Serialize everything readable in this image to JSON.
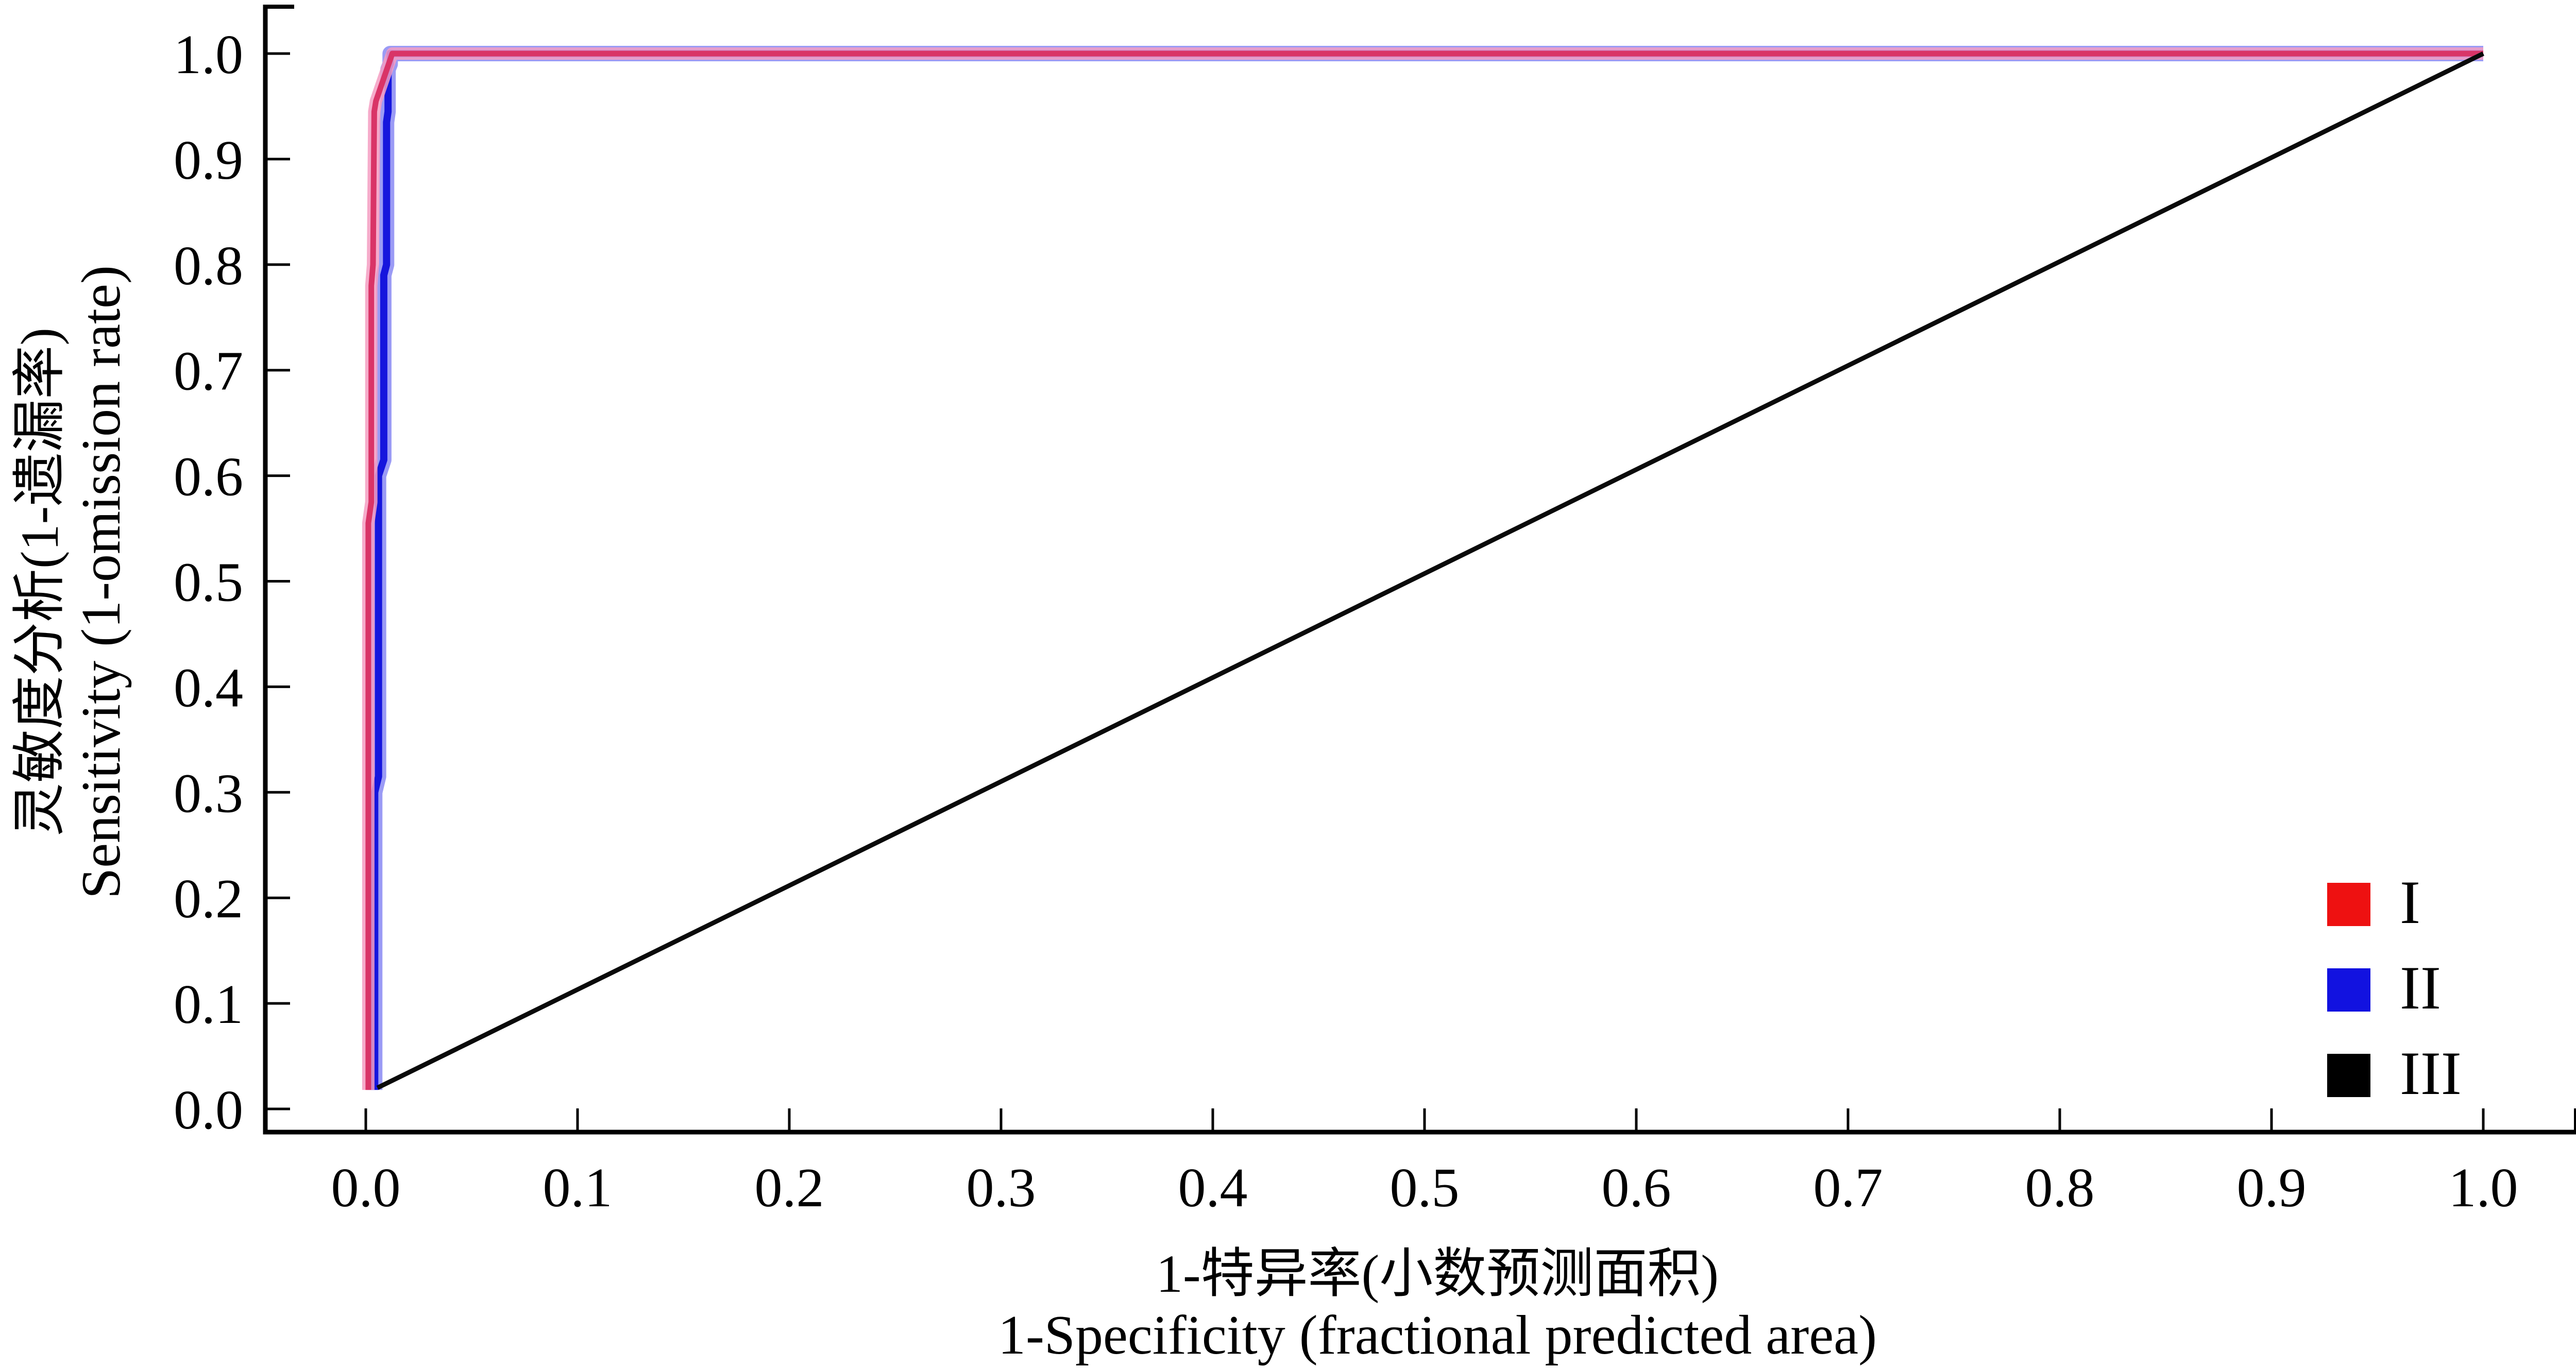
{
  "figure": {
    "background": "#ffffff",
    "x_axis": {
      "title_zh": "1-特异率(小数预测面积)",
      "title_en": "1-Specificity (fractional predicted area)"
    },
    "y_axis": {
      "title_zh": "灵敏度分析(1-遗漏率)",
      "title_en": "Sensitivity (1-omission rate)"
    }
  },
  "chart_data": {
    "type": "line",
    "title": "",
    "xlabel": "1-特异率(小数预测面积)",
    "xlabel_en": "1-Specificity (fractional predicted area)",
    "ylabel": "灵敏度分析(1-遗漏率)",
    "ylabel_en": "Sensitivity (1-omission rate)",
    "xlim": [
      0,
      1
    ],
    "ylim": [
      0,
      1
    ],
    "grid": false,
    "axis_color": "#000000",
    "xticks": [
      0,
      0.1,
      0.2,
      0.3,
      0.4,
      0.5,
      0.6,
      0.7,
      0.8,
      0.9,
      1.0
    ],
    "xtick_labels": [
      "0.0",
      "0.1",
      "0.2",
      "0.3",
      "0.4",
      "0.5",
      "0.6",
      "0.7",
      "0.8",
      "0.9",
      "1.0"
    ],
    "yticks": [
      0,
      0.1,
      0.2,
      0.3,
      0.4,
      0.5,
      0.6,
      0.7,
      0.8,
      0.9,
      1.0
    ],
    "ytick_labels": [
      "0.0",
      "0.1",
      "0.2",
      "0.3",
      "0.4",
      "0.5",
      "0.6",
      "0.7",
      "0.8",
      "0.9",
      "1.0"
    ],
    "legend_position": "lower right",
    "series": [
      {
        "name": "II",
        "description": "stepped ROC curve, blue",
        "color": "#1616dd",
        "halo_color": "#8282f2",
        "width": 14,
        "halo_width": 30,
        "halo_opacity": 0.8,
        "points": [
          [
            0.0042,
            0.018
          ],
          [
            0.0042,
            0.3
          ],
          [
            0.006,
            0.315
          ],
          [
            0.006,
            0.6
          ],
          [
            0.0085,
            0.615
          ],
          [
            0.0085,
            0.79
          ],
          [
            0.0098,
            0.8
          ],
          [
            0.0098,
            0.935
          ],
          [
            0.0105,
            0.945
          ],
          [
            0.0105,
            0.985
          ],
          [
            0.0115,
            0.99
          ],
          [
            0.0115,
            1.0
          ],
          [
            1.0,
            1.0
          ]
        ]
      },
      {
        "name": "I",
        "description": "ROC curve, red/crimson with pink halo",
        "color": "#d93467",
        "halo_color": "#f49ec2",
        "width": 11,
        "halo_width": 24,
        "halo_opacity": 0.85,
        "points": [
          [
            0.0012,
            0.018
          ],
          [
            0.0012,
            0.555
          ],
          [
            0.0026,
            0.575
          ],
          [
            0.0026,
            0.78
          ],
          [
            0.0034,
            0.8
          ],
          [
            0.004,
            0.945
          ],
          [
            0.0048,
            0.955
          ],
          [
            0.0125,
            1.0
          ],
          [
            1.0,
            1.0
          ]
        ]
      },
      {
        "name": "III",
        "description": "random prediction reference diagonal, black",
        "color": "#0a0a0a",
        "width": 9,
        "points": [
          [
            0.0055,
            0.02
          ],
          [
            1.0,
            1.0
          ]
        ]
      }
    ],
    "legend": [
      {
        "label": "I",
        "swatch_color": "#ee1111"
      },
      {
        "label": "II",
        "swatch_color": "#1212e0"
      },
      {
        "label": "III",
        "swatch_color": "#000000"
      }
    ]
  }
}
